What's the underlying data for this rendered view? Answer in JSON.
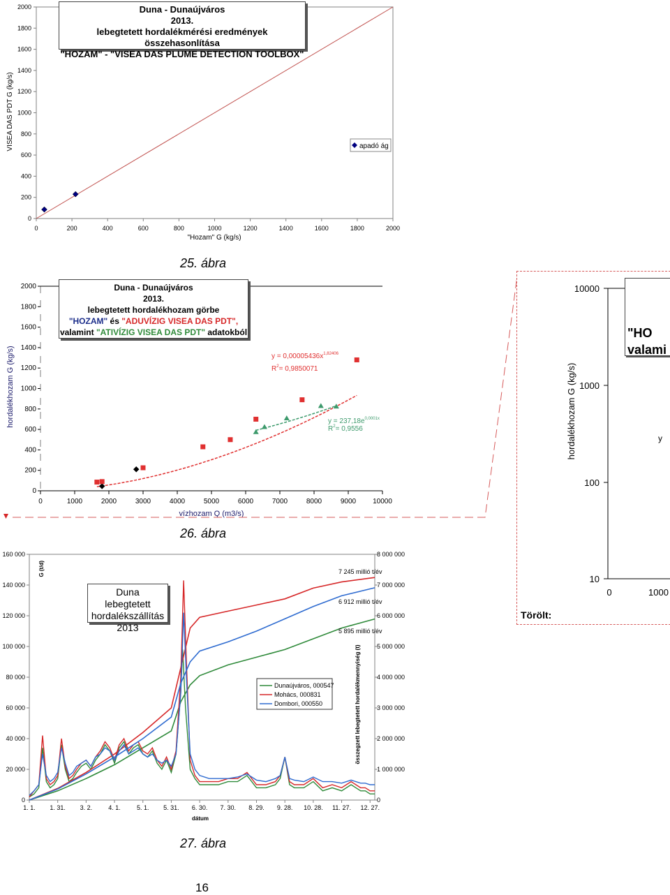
{
  "page_number": "16",
  "chart_data": [
    {
      "id": "fig25",
      "type": "scatter",
      "title": [
        "Duna - Dunaújváros",
        "2013.",
        "lebegtetett hordalékmérési eredmények összehasonlítása",
        "\"HOZAM\"  -  \"VISEA DAS PLUME DETECTION TOOLBOX\""
      ],
      "xlabel": "\"Hozam\" G (kg/s)",
      "ylabel": "VISEA DAS PDT G (kg/s)",
      "xlim": [
        0,
        2000
      ],
      "ylim": [
        0,
        2000
      ],
      "xticks": [
        "0",
        "200",
        "400",
        "600",
        "800",
        "1000",
        "1200",
        "1400",
        "1600",
        "1800",
        "2000"
      ],
      "yticks": [
        "0",
        "200",
        "400",
        "600",
        "800",
        "1000",
        "1200",
        "1400",
        "1600",
        "1800",
        "2000"
      ],
      "series": [
        {
          "name": "apadó ág",
          "x": [
            45,
            220
          ],
          "y": [
            85,
            230
          ],
          "color": "#000080",
          "marker": "diamond"
        }
      ],
      "reference_line": {
        "x": [
          0,
          2000
        ],
        "y": [
          0,
          2000
        ],
        "color": "#c0504d"
      },
      "legend_position": "right"
    },
    {
      "id": "fig26",
      "type": "scatter",
      "title": [
        "Duna - Dunaújváros",
        "2013.",
        "lebegtetett hordalékhozam görbe"
      ],
      "title_line4": {
        "p1": "\"HOZAM\"",
        "p2": " és ",
        "p3": "\"ADUVÍZIG VISEA DAS PDT\","
      },
      "title_line5": {
        "p1": "valamint ",
        "p2": "\"ATIVÍZIG VISEA DAS PDT\"",
        "p3": " adatokból"
      },
      "xlabel": "vízhozam Q (m3/s)",
      "ylabel": "hordalékhozam G (kg/s)",
      "xlim": [
        0,
        10000
      ],
      "ylim": [
        0,
        2000
      ],
      "xticks": [
        "0",
        "1000",
        "2000",
        "3000",
        "4000",
        "5000",
        "6000",
        "7000",
        "8000",
        "9000",
        "10000"
      ],
      "yticks": [
        "0",
        "200",
        "400",
        "600",
        "800",
        "1000",
        "1200",
        "1400",
        "1600",
        "1800",
        "2000"
      ],
      "series": [
        {
          "name": "HOZAM",
          "x": [
            1800,
            2800
          ],
          "y": [
            45,
            210
          ],
          "color": "#000000",
          "marker": "diamond"
        },
        {
          "name": "ADUVÍZIG VISEA DAS PDT",
          "x": [
            1650,
            1800,
            3000,
            4750,
            5550,
            6300,
            7650,
            9250
          ],
          "y": [
            85,
            90,
            225,
            430,
            500,
            700,
            890,
            1280
          ],
          "color": "#e03030",
          "marker": "square"
        },
        {
          "name": "ATIVÍZIG VISEA DAS PDT",
          "x": [
            6300,
            6550,
            7200,
            8200,
            8650
          ],
          "y": [
            575,
            625,
            710,
            830,
            825
          ],
          "color": "#3d9a6c",
          "marker": "triangle"
        }
      ],
      "trendlines": [
        {
          "equation": "y = 0,00005436x",
          "exponent": "1,82406",
          "r2_label": "R",
          "r2_value": "= 0,9850071",
          "x_range": [
            1650,
            9250
          ],
          "coef": 5.436e-05,
          "pow": 1.82406,
          "color": "#e03030"
        },
        {
          "equation": "y = 237,18e",
          "exponent": "0,0001x",
          "r2_label": "R",
          "r2_value": "= 0,9556",
          "x_range": [
            6300,
            8650
          ],
          "coef": 237.18,
          "exp_rate": 0.000145,
          "color": "#3d9a6c"
        }
      ]
    },
    {
      "id": "fig26_side",
      "type": "scatter",
      "title_fragment": [
        "\"HO",
        "valami"
      ],
      "ylabel": "hordalékhozam G (kg/s)",
      "yscale": "log",
      "yticks": [
        "10000",
        "1000",
        "100",
        "10"
      ],
      "xticks": [
        "0",
        "1000"
      ],
      "equation_fragment": "y",
      "note": "Törölt:"
    },
    {
      "id": "fig27",
      "type": "line",
      "title": [
        "Duna",
        "lebegtetett hordalékszállítás",
        "2013"
      ],
      "xlabel": "dátum",
      "ylabel_left": "G (t/d)",
      "ylabel_right": "összegzett lebegtetett hordalékmennyiség (t)",
      "ylim_left": [
        0,
        160000
      ],
      "ylim_right": [
        0,
        8000000
      ],
      "yticks_left": [
        "0",
        "20 000",
        "40 000",
        "60 000",
        "80 000",
        "100 000",
        "120 000",
        "140 000",
        "160 000"
      ],
      "yticks_right": [
        "0",
        "1 000 000",
        "2 000 000",
        "3 000 000",
        "4 000 000",
        "5 000 000",
        "6 000 000",
        "7 000 000",
        "8 000 000"
      ],
      "xticks": [
        "1. 1.",
        "1. 31.",
        "3. 2.",
        "4. 1.",
        "5. 1.",
        "5. 31.",
        "6. 30.",
        "7. 30.",
        "8. 29.",
        "9. 28.",
        "10. 28.",
        "11. 27.",
        "12. 27."
      ],
      "x_days": [
        0,
        30,
        60,
        90,
        120,
        150,
        180,
        210,
        240,
        270,
        300,
        330,
        360
      ],
      "annotations": [
        "7 245 millió t/év",
        "6 912 millió t/év",
        "5 895 millió t/év"
      ],
      "series": [
        {
          "name": "Dunaújváros,  000547",
          "color": "#2f8a3a",
          "scale": 1.0,
          "daily_days": [
            0,
            5,
            10,
            14,
            18,
            22,
            26,
            30,
            34,
            38,
            42,
            46,
            50,
            55,
            60,
            65,
            70,
            75,
            80,
            85,
            90,
            95,
            100,
            105,
            110,
            115,
            120,
            125,
            130,
            135,
            140,
            145,
            150,
            155,
            160,
            162,
            165,
            170,
            175,
            180,
            190,
            200,
            210,
            220,
            230,
            240,
            250,
            260,
            265,
            270,
            275,
            280,
            290,
            300,
            310,
            320,
            330,
            340,
            350,
            355,
            360,
            365
          ],
          "daily_vals": [
            2000,
            4000,
            8000,
            34000,
            12000,
            8000,
            10000,
            14000,
            36000,
            20000,
            12000,
            14000,
            18000,
            22000,
            24000,
            20000,
            26000,
            30000,
            36000,
            32000,
            24000,
            34000,
            38000,
            30000,
            34000,
            36000,
            30000,
            28000,
            32000,
            24000,
            20000,
            26000,
            18000,
            30000,
            70000,
            98000,
            60000,
            20000,
            14000,
            10000,
            10000,
            10000,
            12000,
            12000,
            16000,
            8000,
            8000,
            10000,
            14000,
            28000,
            10000,
            8000,
            8000,
            12000,
            6000,
            8000,
            6000,
            10000,
            6000,
            6000,
            4000,
            4000
          ],
          "cum_days": [
            0,
            30,
            60,
            90,
            120,
            150,
            160,
            170,
            180,
            210,
            240,
            270,
            300,
            330,
            365
          ],
          "cum_vals": [
            0,
            300000,
            700000,
            1150000,
            1700000,
            2250000,
            3200000,
            3750000,
            4050000,
            4400000,
            4650000,
            4900000,
            5250000,
            5600000,
            5895000
          ]
        },
        {
          "name": "Mohács,  000831",
          "color": "#d62728",
          "scale": 1.0,
          "daily_days": [
            0,
            5,
            10,
            14,
            18,
            22,
            26,
            30,
            34,
            38,
            42,
            46,
            50,
            55,
            60,
            65,
            70,
            75,
            80,
            85,
            90,
            95,
            100,
            105,
            110,
            115,
            120,
            125,
            130,
            135,
            140,
            145,
            150,
            155,
            160,
            163,
            166,
            170,
            175,
            180,
            190,
            200,
            210,
            220,
            230,
            240,
            250,
            260,
            265,
            270,
            275,
            280,
            290,
            300,
            310,
            320,
            330,
            340,
            350,
            355,
            360,
            365
          ],
          "daily_vals": [
            2000,
            6000,
            10000,
            42000,
            14000,
            10000,
            12000,
            16000,
            40000,
            22000,
            14000,
            16000,
            20000,
            24000,
            26000,
            22000,
            28000,
            32000,
            38000,
            34000,
            26000,
            36000,
            40000,
            32000,
            36000,
            38000,
            32000,
            30000,
            34000,
            26000,
            22000,
            28000,
            20000,
            32000,
            80000,
            143000,
            90000,
            26000,
            16000,
            12000,
            12000,
            12000,
            14000,
            14000,
            18000,
            10000,
            10000,
            12000,
            16000,
            28000,
            12000,
            10000,
            10000,
            14000,
            8000,
            10000,
            8000,
            12000,
            8000,
            8000,
            6000,
            6000
          ],
          "cum_days": [
            0,
            30,
            60,
            90,
            120,
            150,
            160,
            170,
            180,
            210,
            240,
            270,
            300,
            330,
            365
          ],
          "cum_vals": [
            0,
            380000,
            900000,
            1500000,
            2200000,
            3000000,
            4300000,
            5600000,
            5950000,
            6150000,
            6350000,
            6550000,
            6900000,
            7100000,
            7245000
          ]
        },
        {
          "name": "Dombori,  000550",
          "color": "#2e6bd0",
          "scale": 1.0,
          "daily_days": [
            0,
            5,
            10,
            14,
            18,
            22,
            26,
            30,
            34,
            38,
            42,
            46,
            50,
            55,
            60,
            65,
            70,
            75,
            80,
            85,
            90,
            95,
            100,
            105,
            110,
            115,
            120,
            125,
            130,
            135,
            140,
            145,
            150,
            155,
            160,
            163,
            166,
            170,
            175,
            180,
            190,
            200,
            210,
            220,
            230,
            240,
            250,
            260,
            265,
            270,
            275,
            280,
            290,
            300,
            310,
            320,
            330,
            340,
            350,
            355,
            360,
            365
          ],
          "daily_vals": [
            3000,
            6000,
            10000,
            30000,
            16000,
            12000,
            14000,
            18000,
            34000,
            24000,
            16000,
            18000,
            22000,
            24000,
            26000,
            22000,
            28000,
            30000,
            34000,
            32000,
            26000,
            32000,
            36000,
            30000,
            32000,
            34000,
            30000,
            28000,
            30000,
            26000,
            24000,
            26000,
            22000,
            30000,
            70000,
            122000,
            80000,
            30000,
            20000,
            16000,
            14000,
            14000,
            14000,
            15000,
            17000,
            13000,
            12000,
            14000,
            16000,
            28000,
            14000,
            13000,
            12000,
            15000,
            12000,
            12000,
            11000,
            13000,
            11000,
            11000,
            10000,
            10000
          ],
          "cum_days": [
            0,
            30,
            60,
            90,
            120,
            150,
            160,
            170,
            180,
            210,
            240,
            270,
            300,
            330,
            365
          ],
          "cum_vals": [
            0,
            360000,
            850000,
            1400000,
            2000000,
            2700000,
            3800000,
            4500000,
            4850000,
            5150000,
            5500000,
            5900000,
            6300000,
            6650000,
            6912000
          ]
        }
      ]
    }
  ],
  "captions": {
    "fig25": "25. ábra",
    "fig26": "26. ábra",
    "fig27": "27. ábra"
  }
}
